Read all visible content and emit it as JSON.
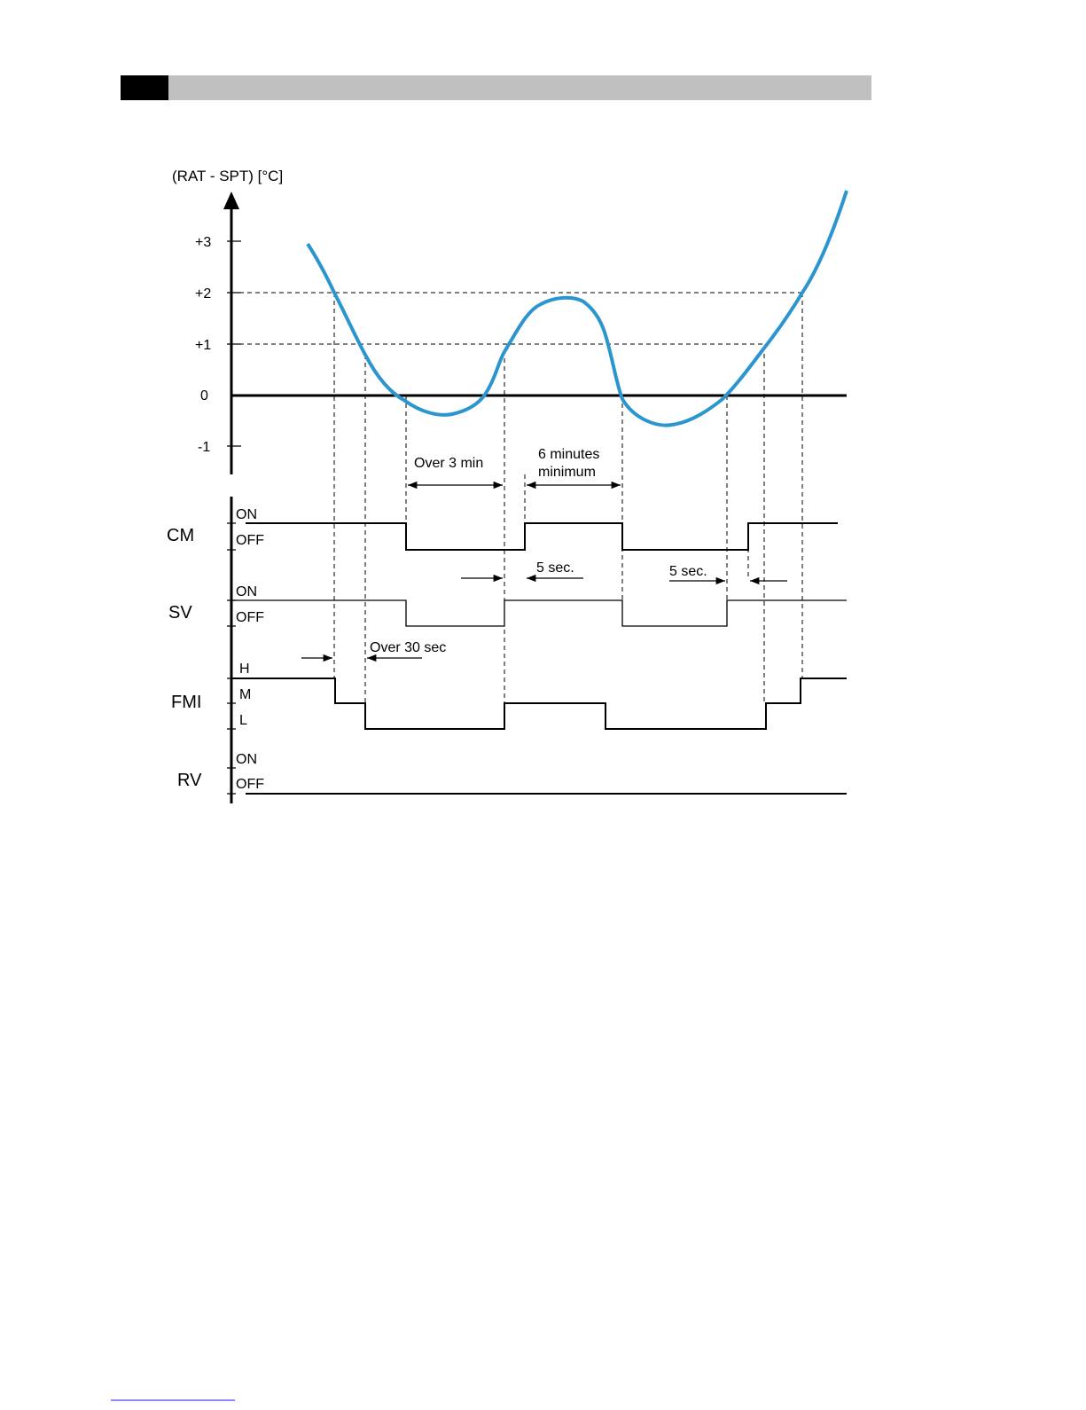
{
  "axis": {
    "title": "(RAT - SPT) [°C]",
    "ticks": [
      "+3",
      "+2",
      "+1",
      "0",
      "-1"
    ]
  },
  "annotations": {
    "over_3_min": "Over 3 min",
    "six_minutes": [
      "6 minutes",
      "minimum"
    ],
    "five_sec_1": "5 sec.",
    "five_sec_2": "5 sec.",
    "over_30_sec": "Over 30 sec"
  },
  "signals": [
    {
      "name": "CM",
      "states": [
        "ON",
        "OFF"
      ]
    },
    {
      "name": "SV",
      "states": [
        "ON",
        "OFF"
      ]
    },
    {
      "name": "FMI",
      "states": [
        "H",
        "M",
        "L"
      ]
    },
    {
      "name": "RV",
      "states": [
        "ON",
        "OFF"
      ]
    }
  ]
}
